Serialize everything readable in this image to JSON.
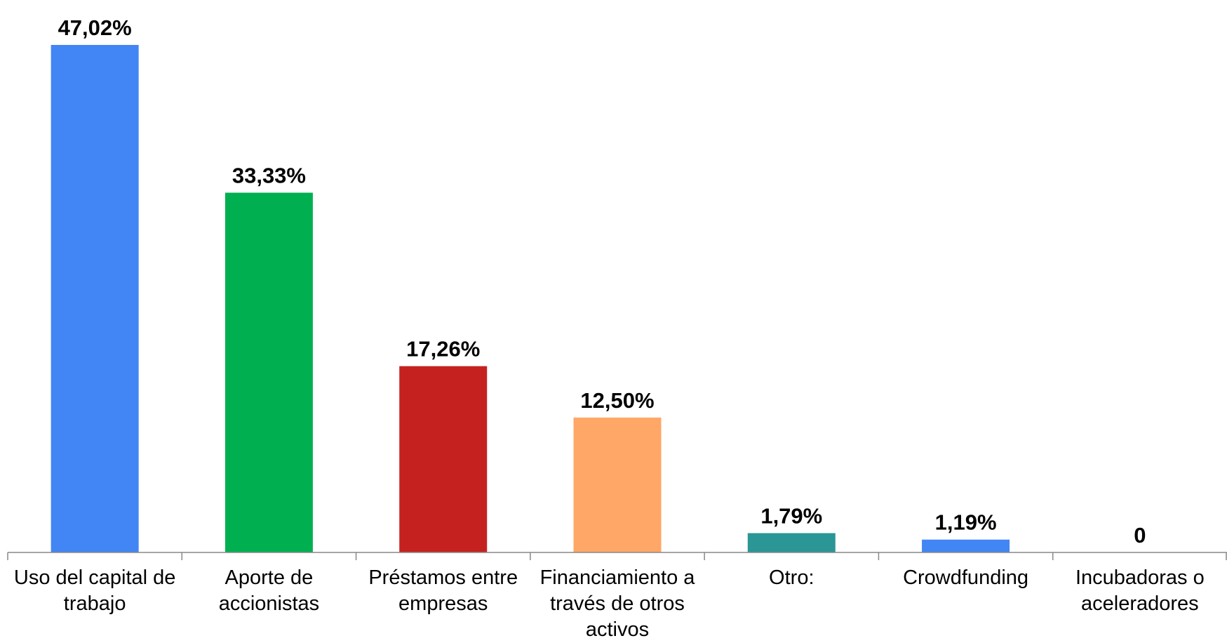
{
  "chart_data": {
    "type": "bar",
    "categories": [
      "Uso del capital de trabajo",
      "Aporte de accionistas",
      "Préstamos entre empresas",
      "Financiamiento a través de otros activos",
      "Otro:",
      "Crowdfunding",
      "Incubadoras o aceleradores"
    ],
    "values": [
      47.02,
      33.33,
      17.26,
      12.5,
      1.79,
      1.19,
      0
    ],
    "value_labels": [
      "47,02%",
      "33,33%",
      "17,26%",
      "12,50%",
      "1,79%",
      "1,19%",
      "0"
    ],
    "colors": [
      "#4285f4",
      "#00b050",
      "#c5221f",
      "#ffa767",
      "#2b9696",
      "#4285f4",
      "#4285f4"
    ]
  }
}
